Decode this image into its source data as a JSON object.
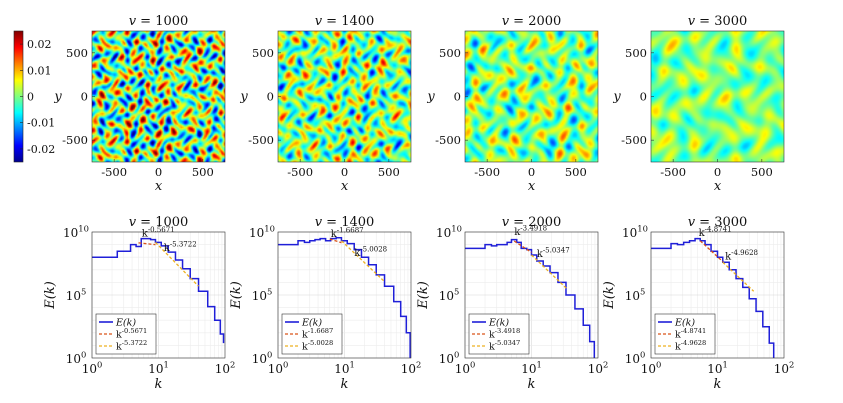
{
  "colorbar": {
    "ticks": [
      "0.02",
      "0.01",
      "0",
      "-0.01",
      "-0.02"
    ],
    "tick_values": [
      0.02,
      0.01,
      0,
      -0.01,
      -0.02
    ],
    "range": [
      -0.025,
      0.025
    ],
    "colormap": "jet"
  },
  "field_panels": [
    {
      "title": "v = 1000",
      "xlabel": "x",
      "ylabel": "y",
      "xticks": [
        "-500",
        "0",
        "500"
      ],
      "yticks": [
        "500",
        "0",
        "-500"
      ],
      "blob_scale": 8,
      "amplitude": 1.25
    },
    {
      "title": "v = 1400",
      "xlabel": "x",
      "ylabel": "y",
      "xticks": [
        "-500",
        "0",
        "500"
      ],
      "yticks": [
        "500",
        "0",
        "-500"
      ],
      "blob_scale": 7,
      "amplitude": 0.9
    },
    {
      "title": "v = 2000",
      "xlabel": "x",
      "ylabel": "y",
      "xticks": [
        "-500",
        "0",
        "500"
      ],
      "yticks": [
        "500",
        "0",
        "-500"
      ],
      "blob_scale": 5.5,
      "amplitude": 0.65
    },
    {
      "title": "v = 3000",
      "xlabel": "x",
      "ylabel": "y",
      "xticks": [
        "-500",
        "0",
        "500"
      ],
      "yticks": [
        "500",
        "0",
        "-500"
      ],
      "blob_scale": 4,
      "amplitude": 0.45
    }
  ],
  "chart_data": [
    {
      "type": "line",
      "title": "v = 1000",
      "xlabel": "k",
      "ylabel": "E(k)",
      "xscale": "log",
      "yscale": "log",
      "xlim": [
        1,
        100
      ],
      "ylim": [
        1,
        10000000000.0
      ],
      "xticks": [
        "10^0",
        "10^1",
        "10^2"
      ],
      "yticks": [
        "10^0",
        "10^5",
        "10^10"
      ],
      "grid": true,
      "legend": "bottom-left",
      "legend_entries": [
        "E(k)",
        "k^-0.5671",
        "k^-5.3722"
      ],
      "annotations": [
        "k^-0.5671",
        "k^-5.3722"
      ],
      "series": [
        {
          "name": "E(k)",
          "color": "#1f1fd8",
          "k": [
            1,
            1.9,
            2.4,
            3,
            3.8,
            4.6,
            5.5,
            6.5,
            7.6,
            9,
            11,
            14,
            18,
            23,
            30,
            40,
            55,
            70,
            85,
            95
          ],
          "E": [
            100000000.0,
            100000000.0,
            300000000.0,
            300000000.0,
            1000000000.0,
            700000000.0,
            3000000000.0,
            3000000000.0,
            2500000000.0,
            1500000000.0,
            800000000.0,
            250000000.0,
            60000000.0,
            12000000.0,
            2000000.0,
            200000.0,
            12000.0,
            1000.0,
            80,
            15
          ]
        },
        {
          "name": "k^-0.5671",
          "color": "#d95319",
          "exponent": -0.5671,
          "k": [
            5,
            9
          ]
        },
        {
          "name": "k^-5.3722",
          "color": "#edb120",
          "exponent": -5.3722,
          "k": [
            9,
            40
          ]
        }
      ]
    },
    {
      "type": "line",
      "title": "v = 1400",
      "xlabel": "k",
      "ylabel": "E(k)",
      "xscale": "log",
      "yscale": "log",
      "xlim": [
        1,
        100
      ],
      "ylim": [
        1,
        10000000000.0
      ],
      "xticks": [
        "10^0",
        "10^1",
        "10^2"
      ],
      "yticks": [
        "10^0",
        "10^5",
        "10^10"
      ],
      "grid": true,
      "legend": "bottom-left",
      "legend_entries": [
        "E(k)",
        "k^-1.6687",
        "k^-5.0028"
      ],
      "annotations": [
        "k^-1.6687",
        "k^-5.0028"
      ],
      "series": [
        {
          "name": "E(k)",
          "color": "#1f1fd8",
          "k": [
            1,
            1.5,
            2,
            2.5,
            3,
            3.6,
            4.3,
            5.2,
            6.2,
            7.5,
            9,
            11,
            14,
            18,
            23,
            30,
            40,
            55,
            70,
            85,
            97
          ],
          "E": [
            1000000000.0,
            1000000000.0,
            2000000000.0,
            1500000000.0,
            2000000000.0,
            2500000000.0,
            3000000000.0,
            2000000000.0,
            3000000000.0,
            3500000000.0,
            2000000000.0,
            1200000000.0,
            400000000.0,
            100000000.0,
            25000000.0,
            4000000.0,
            500000.0,
            30000.0,
            2000.0,
            100,
            1
          ]
        },
        {
          "name": "k^-1.6687",
          "color": "#d95319",
          "exponent": -1.6687,
          "k": [
            6,
            9
          ]
        },
        {
          "name": "k^-5.0028",
          "color": "#edb120",
          "exponent": -5.0028,
          "k": [
            9,
            40
          ]
        }
      ]
    },
    {
      "type": "line",
      "title": "v = 2000",
      "xlabel": "k",
      "ylabel": "E(k)",
      "xscale": "log",
      "yscale": "log",
      "xlim": [
        1,
        100
      ],
      "ylim": [
        1,
        10000000000.0
      ],
      "xticks": [
        "10^0",
        "10^1",
        "10^2"
      ],
      "yticks": [
        "10^0",
        "10^5",
        "10^10"
      ],
      "grid": true,
      "legend": "bottom-left",
      "legend_entries": [
        "E(k)",
        "k^-3.4918",
        "k^-5.0347"
      ],
      "annotations": [
        "k^-3.4918",
        "k^-5.0347"
      ],
      "series": [
        {
          "name": "E(k)",
          "color": "#1f1fd8",
          "k": [
            1,
            1.5,
            2,
            2.5,
            3,
            3.6,
            4.3,
            5,
            6,
            7,
            8.5,
            10,
            12,
            15,
            19,
            25,
            33,
            45,
            60,
            75,
            88
          ],
          "E": [
            500000000.0,
            500000000.0,
            1000000000.0,
            800000000.0,
            1000000000.0,
            1000000000.0,
            1500000000.0,
            2500000000.0,
            1500000000.0,
            500000000.0,
            400000000.0,
            150000000.0,
            50000000.0,
            20000000.0,
            6000000.0,
            1000000.0,
            100000.0,
            8000.0,
            400,
            20,
            1
          ]
        },
        {
          "name": "k^-3.4918",
          "color": "#d95319",
          "exponent": -3.4918,
          "k": [
            5.5,
            10
          ]
        },
        {
          "name": "k^-5.0347",
          "color": "#edb120",
          "exponent": -5.0347,
          "k": [
            10,
            35
          ]
        }
      ]
    },
    {
      "type": "line",
      "title": "v = 3000",
      "xlabel": "k",
      "ylabel": "E(k)",
      "xscale": "log",
      "yscale": "log",
      "xlim": [
        1,
        100
      ],
      "ylim": [
        1,
        10000000000.0
      ],
      "xticks": [
        "10^0",
        "10^1",
        "10^2"
      ],
      "yticks": [
        "10^0",
        "10^5",
        "10^10"
      ],
      "grid": true,
      "legend": "bottom-left",
      "legend_entries": [
        "E(k)",
        "k^-4.8741",
        "k^-4.9628"
      ],
      "annotations": [
        "k^-4.8741",
        "k^-4.9628"
      ],
      "series": [
        {
          "name": "E(k)",
          "color": "#1f1fd8",
          "k": [
            1,
            1.6,
            2,
            2.5,
            3.1,
            3.8,
            4.6,
            5.5,
            6.5,
            8,
            10,
            12,
            15,
            19,
            24,
            30,
            38,
            48,
            60,
            70
          ],
          "E": [
            500000000.0,
            500000000.0,
            1200000000.0,
            1000000000.0,
            1500000000.0,
            2000000000.0,
            3000000000.0,
            2000000000.0,
            1000000000.0,
            300000000.0,
            100000000.0,
            40000000.0,
            10000000.0,
            2000000.0,
            400000.0,
            50000.0,
            5000.0,
            300,
            15,
            1
          ]
        },
        {
          "name": "k^-4.8741",
          "color": "#d95319",
          "exponent": -4.8741,
          "k": [
            5.5,
            12
          ]
        },
        {
          "name": "k^-4.9628",
          "color": "#edb120",
          "exponent": -4.9628,
          "k": [
            12,
            35
          ]
        }
      ]
    }
  ]
}
